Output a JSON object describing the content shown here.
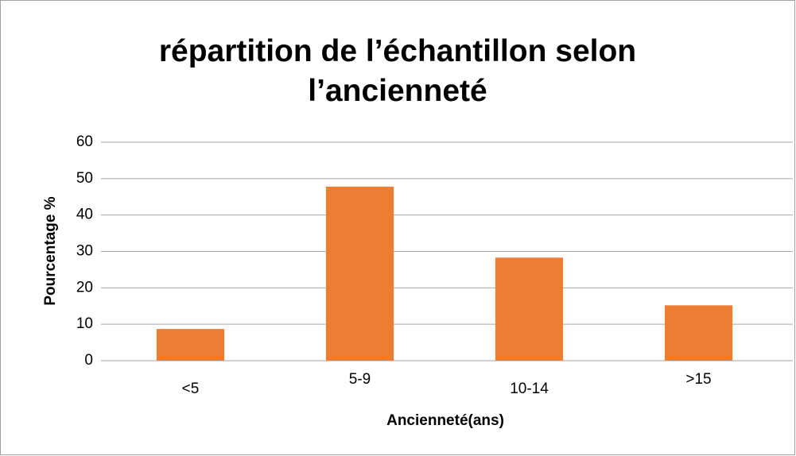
{
  "chart_data": {
    "type": "bar",
    "title": "répartition de l’échantillon selon l’ancienneté",
    "xlabel": "Ancienneté(ans)",
    "ylabel": "Pourcentage %",
    "categories": [
      "<5",
      "5-9",
      "10-14",
      ">15"
    ],
    "values": [
      8.7,
      47.8,
      28.3,
      15.2
    ],
    "color": "#ed7d31",
    "ylim": [
      0,
      60
    ],
    "yticks": [
      0,
      10,
      20,
      30,
      40,
      50,
      60
    ],
    "grid": true
  }
}
